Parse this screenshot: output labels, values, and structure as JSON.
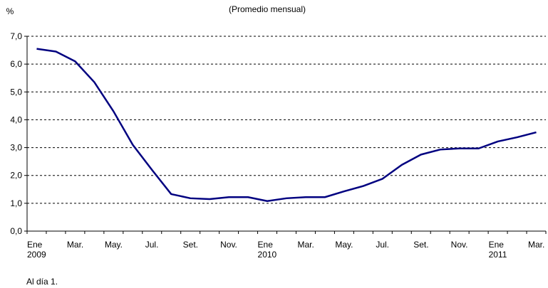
{
  "chart_data": {
    "type": "line",
    "title": "(Promedio mensual)",
    "y_unit": "%",
    "footnote": "Al día 1.",
    "categories": [
      "Ene\n2009",
      null,
      "Mar.",
      null,
      "May.",
      null,
      "Jul.",
      null,
      "Set.",
      null,
      "Nov.",
      null,
      "Ene\n2010",
      null,
      "Mar.",
      null,
      "May.",
      null,
      "Jul.",
      null,
      "Set.",
      null,
      "Nov.",
      null,
      "Ene\n2011",
      null,
      "Mar."
    ],
    "series": [
      {
        "name": "Promedio mensual",
        "color": "#000080",
        "values": [
          6.55,
          6.45,
          6.1,
          5.35,
          4.3,
          3.1,
          2.2,
          1.33,
          1.18,
          1.15,
          1.22,
          1.22,
          1.08,
          1.18,
          1.22,
          1.22,
          1.43,
          1.62,
          1.88,
          2.38,
          2.75,
          2.93,
          2.97,
          2.97,
          3.22,
          3.37,
          3.55
        ]
      }
    ],
    "ylim": [
      0,
      7
    ],
    "yticks": [
      {
        "value": 0,
        "label": "0,0"
      },
      {
        "value": 1,
        "label": "1,0"
      },
      {
        "value": 2,
        "label": "2,0"
      },
      {
        "value": 3,
        "label": "3,0"
      },
      {
        "value": 4,
        "label": "4,0"
      },
      {
        "value": 5,
        "label": "5,0"
      },
      {
        "value": 6,
        "label": "6,0"
      },
      {
        "value": 7,
        "label": "7,0"
      }
    ],
    "grid": true
  }
}
